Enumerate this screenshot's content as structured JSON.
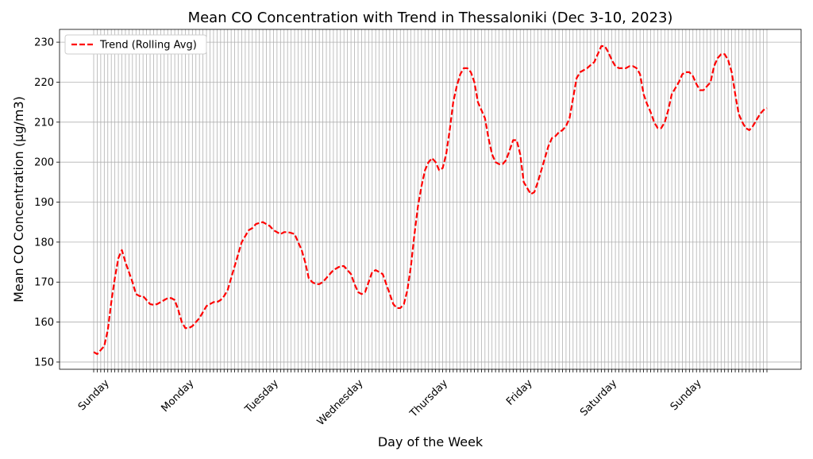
{
  "chart_data": {
    "type": "line",
    "title": "Mean CO Concentration with Trend in Thessaloniki (Dec 3-10, 2023)",
    "x_label": "Day of the Week",
    "y_label": "Mean CO Concentration (µg/m3)",
    "categories": [
      "Sunday",
      null,
      null,
      null,
      null,
      null,
      null,
      null,
      null,
      null,
      null,
      null,
      null,
      null,
      null,
      null,
      null,
      null,
      null,
      null,
      null,
      null,
      null,
      null,
      "Monday",
      null,
      null,
      null,
      null,
      null,
      null,
      null,
      null,
      null,
      null,
      null,
      null,
      null,
      null,
      null,
      null,
      null,
      null,
      null,
      null,
      null,
      null,
      null,
      "Tuesday",
      null,
      null,
      null,
      null,
      null,
      null,
      null,
      null,
      null,
      null,
      null,
      null,
      null,
      null,
      null,
      null,
      null,
      null,
      null,
      null,
      null,
      null,
      null,
      "Wednesday",
      null,
      null,
      null,
      null,
      null,
      null,
      null,
      null,
      null,
      null,
      null,
      null,
      null,
      null,
      null,
      null,
      null,
      null,
      null,
      null,
      null,
      null,
      null,
      "Thursday",
      null,
      null,
      null,
      null,
      null,
      null,
      null,
      null,
      null,
      null,
      null,
      null,
      null,
      null,
      null,
      null,
      null,
      null,
      null,
      null,
      null,
      null,
      null,
      "Friday",
      null,
      null,
      null,
      null,
      null,
      null,
      null,
      null,
      null,
      null,
      null,
      null,
      null,
      null,
      null,
      null,
      null,
      null,
      null,
      null,
      null,
      null,
      null,
      "Saturday",
      null,
      null,
      null,
      null,
      null,
      null,
      null,
      null,
      null,
      null,
      null,
      null,
      null,
      null,
      null,
      null,
      null,
      null,
      null,
      null,
      null,
      null,
      null,
      "Sunday",
      null,
      null,
      null,
      null,
      null,
      null,
      null,
      null,
      null,
      null,
      null,
      null,
      null,
      null,
      null,
      null,
      null,
      null,
      null,
      null,
      null,
      null,
      null
    ],
    "series": [
      {
        "name": "Trend (Rolling Avg)",
        "color": "#ff0000",
        "dashed": true,
        "values": [
          152.5,
          152,
          153,
          154,
          158,
          165,
          171,
          176,
          178,
          175,
          172.5,
          170,
          167,
          166.5,
          166.5,
          165.5,
          164.5,
          164.3,
          164.5,
          165,
          165.5,
          166,
          166,
          165.5,
          163,
          160,
          158.5,
          158.5,
          159,
          160,
          161,
          162.5,
          164,
          164.5,
          165,
          165,
          165.5,
          166.5,
          168,
          171,
          174,
          177,
          180,
          181.5,
          183,
          183.5,
          184.5,
          184.8,
          185,
          184.5,
          184,
          183,
          182.5,
          182,
          182.5,
          182.5,
          182.3,
          182,
          180,
          178,
          175,
          171,
          170,
          169.5,
          169.5,
          170,
          171,
          172,
          173,
          173.5,
          174,
          174,
          173,
          172,
          169.5,
          167.5,
          167,
          167.5,
          170,
          172.5,
          173,
          172.5,
          172,
          169.5,
          167,
          164.5,
          163.5,
          163.5,
          164.5,
          168,
          174,
          182,
          189,
          194,
          198,
          200,
          201,
          200,
          198,
          198.5,
          202,
          208,
          215,
          219,
          222,
          223.5,
          223.5,
          222.5,
          220,
          215,
          213,
          211,
          206,
          202,
          200,
          199.5,
          199.5,
          200.5,
          203,
          205.5,
          205.5,
          202,
          195,
          193.5,
          192,
          192.5,
          195,
          198,
          201,
          204,
          206,
          206.5,
          207.5,
          208,
          209,
          211,
          216,
          221,
          222.5,
          223,
          223.5,
          224.3,
          225,
          227,
          229,
          229,
          227.5,
          225.5,
          224,
          223.5,
          223.5,
          223.5,
          224,
          224,
          223.5,
          222,
          217,
          214.5,
          212.5,
          210,
          208.5,
          208.5,
          210,
          213,
          217,
          218.5,
          220,
          222,
          222.5,
          222.5,
          221.5,
          219.5,
          218,
          218,
          219,
          220,
          224,
          226,
          227,
          227,
          225.5,
          222.5,
          217,
          212,
          210,
          208.5,
          208,
          209,
          210.5,
          212,
          213,
          213.5
        ]
      }
    ],
    "ylim": [
      148.2,
      233.2
    ],
    "yticks": [
      150,
      160,
      170,
      180,
      190,
      200,
      210,
      220,
      230
    ],
    "grid": true,
    "legend": "upper left"
  }
}
